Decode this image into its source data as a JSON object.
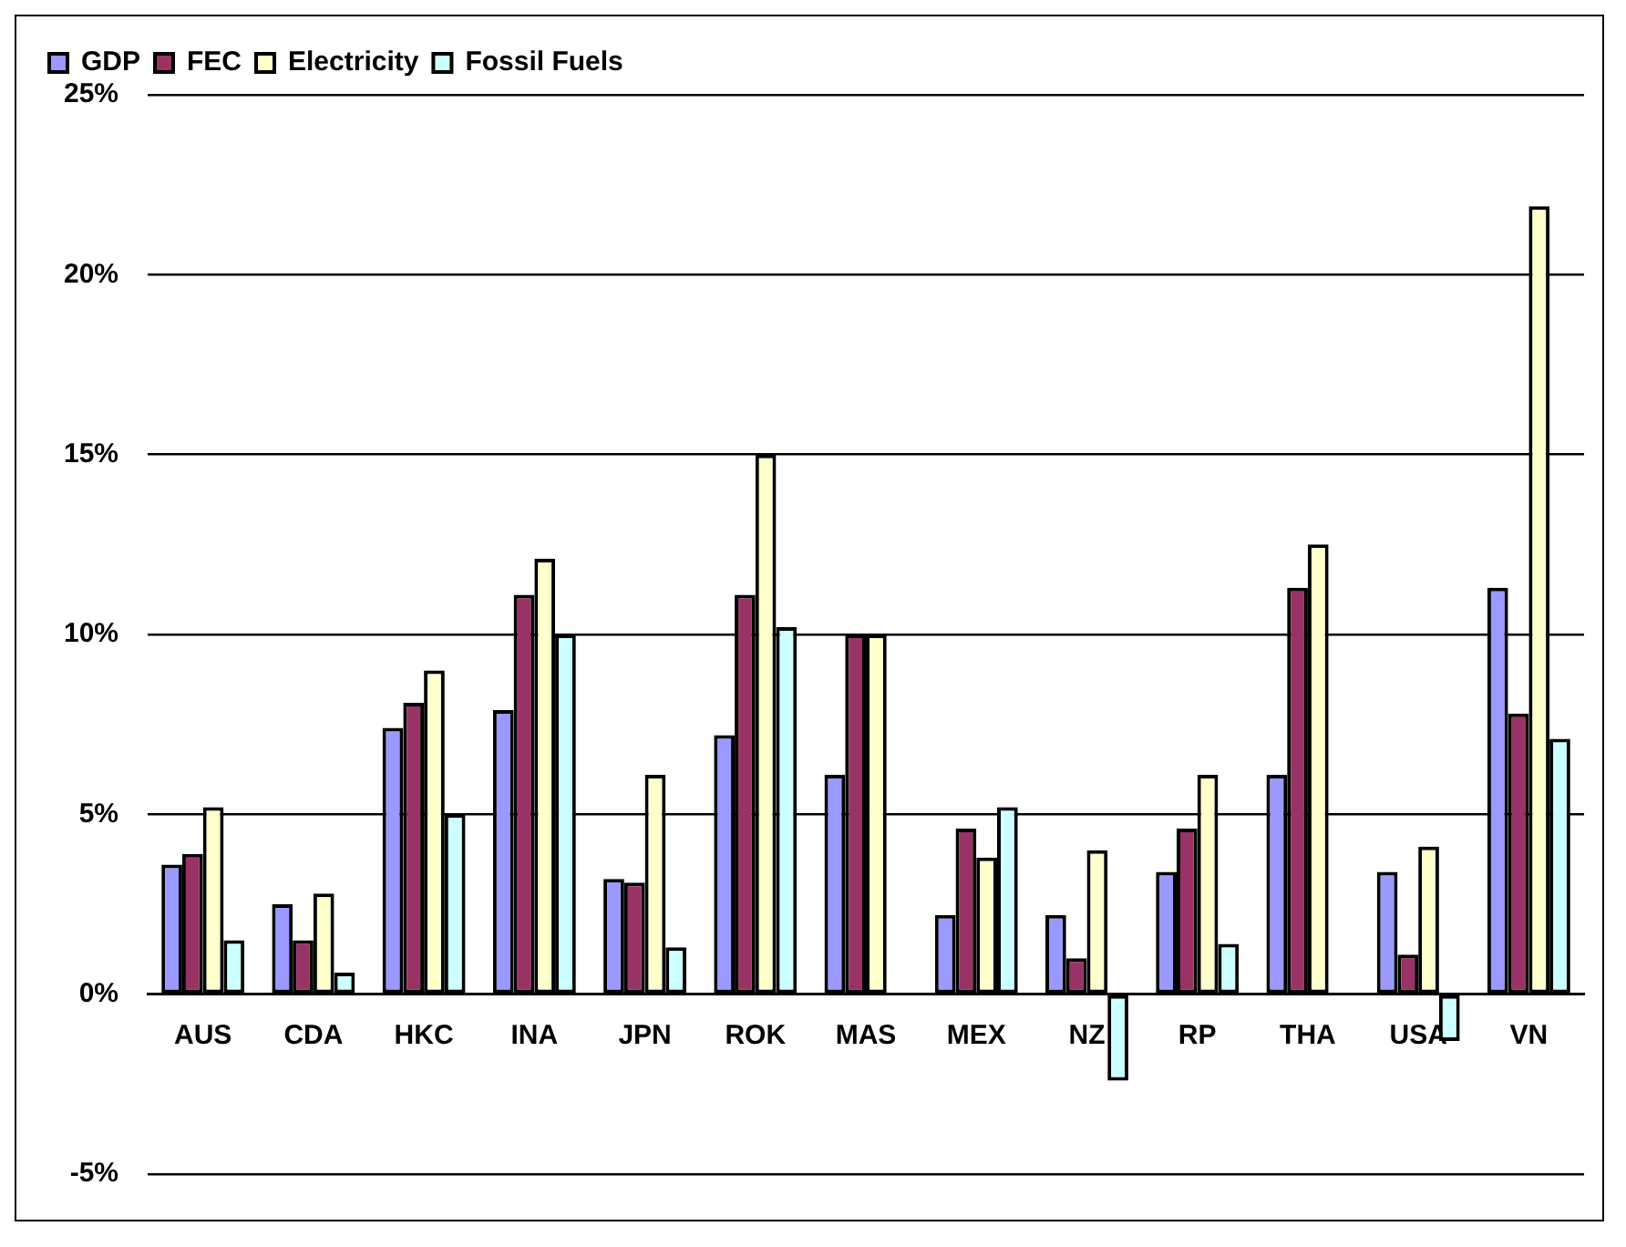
{
  "chart_data": {
    "type": "bar",
    "categories": [
      "AUS",
      "CDA",
      "HKC",
      "INA",
      "JPN",
      "ROK",
      "MAS",
      "MEX",
      "NZ",
      "RP",
      "THA",
      "USA",
      "VN"
    ],
    "series": [
      {
        "name": "GDP",
        "color": "#9999ff",
        "values": [
          3.6,
          2.5,
          7.4,
          7.9,
          3.2,
          7.2,
          6.1,
          2.2,
          2.2,
          3.4,
          6.1,
          3.4,
          11.3
        ]
      },
      {
        "name": "FEC",
        "color": "#993366",
        "values": [
          3.9,
          1.5,
          8.1,
          11.1,
          3.1,
          11.1,
          10.0,
          4.6,
          1.0,
          4.6,
          11.3,
          1.1,
          7.8
        ]
      },
      {
        "name": "Electricity",
        "color": "#ffffcc",
        "values": [
          5.2,
          2.8,
          9.0,
          12.1,
          6.1,
          15.0,
          10.0,
          3.8,
          4.0,
          6.1,
          12.5,
          4.1,
          21.9
        ]
      },
      {
        "name": "Fossil Fuels",
        "color": "#ccffff",
        "values": [
          1.5,
          0.6,
          5.0,
          10.0,
          1.3,
          10.2,
          null,
          5.2,
          -2.4,
          1.4,
          null,
          -1.3,
          7.1
        ]
      }
    ],
    "ylim": [
      -5,
      25
    ],
    "yticks": [
      {
        "value": -5,
        "label": "-5%"
      },
      {
        "value": 0,
        "label": "0%"
      },
      {
        "value": 5,
        "label": "5%"
      },
      {
        "value": 10,
        "label": "10%"
      },
      {
        "value": 15,
        "label": "15%"
      },
      {
        "value": 20,
        "label": "20%"
      },
      {
        "value": 25,
        "label": "25%"
      }
    ],
    "grid": "y",
    "legend": "top left"
  }
}
